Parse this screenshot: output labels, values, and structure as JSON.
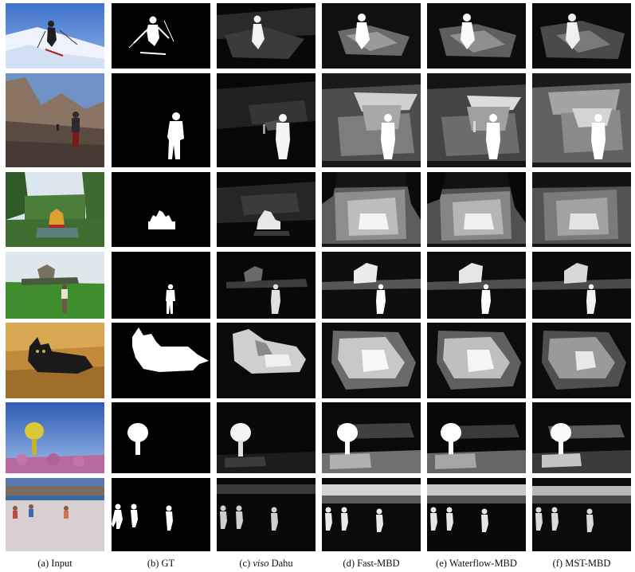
{
  "figure": {
    "columns": [
      {
        "letter": "(a)",
        "label": "Input"
      },
      {
        "letter": "(b)",
        "label": "GT"
      },
      {
        "letter": "(c)",
        "label_italic": "viso",
        "label": "Dahu"
      },
      {
        "letter": "(d)",
        "label": "Fast-MBD"
      },
      {
        "letter": "(e)",
        "label": "Waterflow-MBD"
      },
      {
        "letter": "(f)",
        "label": "MST-MBD"
      }
    ],
    "rows": [
      "skier",
      "hiker",
      "pavilion",
      "man-on-grass",
      "cat-on-couch",
      "water-tower",
      "beach-runners"
    ]
  }
}
